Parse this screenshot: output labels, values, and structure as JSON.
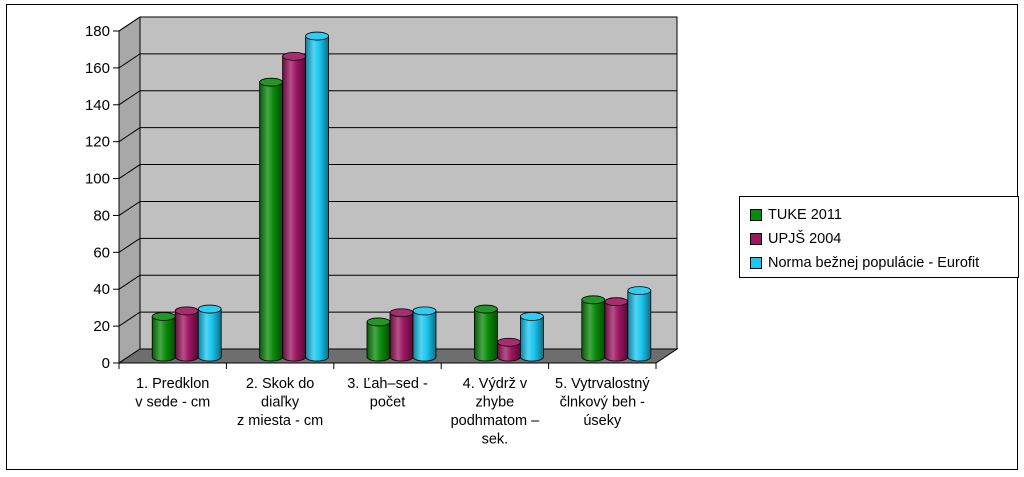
{
  "chart_data": {
    "type": "bar",
    "categories": [
      [
        "1. Predklon",
        "v sede - cm"
      ],
      [
        "2. Skok do",
        "diaľky",
        "z miesta - cm"
      ],
      [
        "3. Ľah–sed -",
        "počet"
      ],
      [
        "4. Výdrž v",
        "zhybe",
        "podhmatom –",
        "sek."
      ],
      [
        "5. Vytrvalostný",
        "člnkový beh -",
        "úseky"
      ]
    ],
    "series": [
      {
        "name": "TUKE 2011",
        "color": "#0a8a0a",
        "values": [
          22,
          149,
          19,
          26,
          31
        ]
      },
      {
        "name": "UPJŠ 2004",
        "color": "#9c1660",
        "values": [
          25,
          163,
          24,
          8,
          30
        ]
      },
      {
        "name": "Norma bežnej populácie - Eurofit",
        "color": "#19c6f0",
        "values": [
          26,
          174,
          25,
          22,
          36
        ]
      }
    ],
    "ylim": [
      0,
      180
    ],
    "yticks": [
      "0",
      "20",
      "40",
      "60",
      "80",
      "100",
      "120",
      "140",
      "160",
      "180"
    ],
    "grid": true,
    "legend_position": "right",
    "style": "3d-cylinder"
  }
}
